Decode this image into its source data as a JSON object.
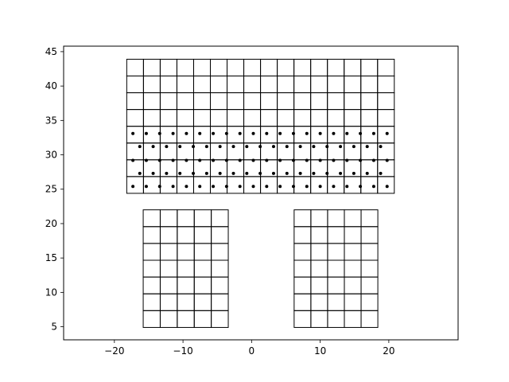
{
  "chart_data": {
    "type": "scatter",
    "title": "",
    "xlabel": "",
    "ylabel": "",
    "xlim": [
      -27.4,
      30.1
    ],
    "ylim": [
      3.1,
      45.8
    ],
    "xticks": [
      -20,
      -10,
      0,
      10,
      20
    ],
    "yticks": [
      5,
      10,
      15,
      20,
      25,
      30,
      35,
      40,
      45
    ],
    "grid": false,
    "legend": null,
    "line_color": "#000000",
    "marker_color": "#000000",
    "grids": [
      {
        "name": "top-block",
        "x0": -18.2,
        "x1": 20.8,
        "y0": 24.4,
        "y1": 43.9,
        "cols": 16,
        "rows": 8
      },
      {
        "name": "left-block",
        "x0": -15.8,
        "x1": -3.4,
        "y0": 4.9,
        "y1": 22.0,
        "cols": 5,
        "rows": 7
      },
      {
        "name": "right-block",
        "x0": 6.2,
        "x1": 18.4,
        "y0": 4.9,
        "y1": 22.0,
        "cols": 5,
        "rows": 7
      }
    ],
    "points": {
      "rows": [
        {
          "y": 33.1,
          "x_start": -17.3,
          "x_step": 1.95,
          "count": 20
        },
        {
          "y": 31.2,
          "x_start": -16.3,
          "x_step": 1.95,
          "count": 19
        },
        {
          "y": 29.2,
          "x_start": -17.3,
          "x_step": 1.95,
          "count": 20
        },
        {
          "y": 27.3,
          "x_start": -16.3,
          "x_step": 1.95,
          "count": 19
        },
        {
          "y": 25.4,
          "x_start": -17.3,
          "x_step": 1.95,
          "count": 20
        }
      ]
    }
  }
}
